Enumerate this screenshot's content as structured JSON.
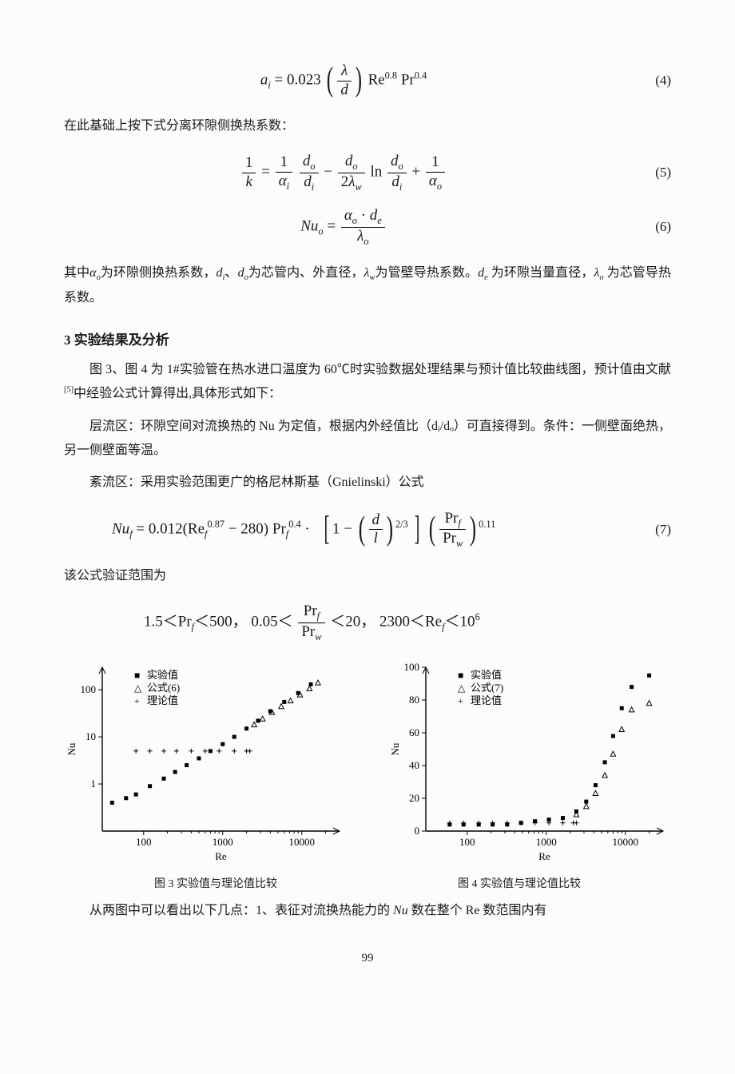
{
  "equations": {
    "eq4": {
      "num": "(4)"
    },
    "eq5": {
      "num": "(5)"
    },
    "eq6": {
      "num": "(6)"
    },
    "eq7": {
      "num": "(7)"
    }
  },
  "text": {
    "p_after_eq4": "在此基础上按下式分离环隙侧换热系数：",
    "p_after_eq6": "其中 αₒ 为环隙侧换热系数，dᵢ、dₒ 为芯管内、外直径，λ_w 为管壁导热系数。dₑ 为环隙当量直径，λₒ 为芯管导热系数。",
    "section3": "3  实验结果及分析",
    "p3_1": "图 3、图 4 为 1#实验管在热水进口温度为 60℃时实验数据处理结果与预计值比较曲线图，预计值由文献[5]中经验公式计算得出,具体形式如下：",
    "p3_2": "层流区：环隙空间对流换热的 Nu 为定值，根据内外经值比（dᵢ/dₒ）可直接得到。条件：一侧壁面绝热，另一侧壁面等温。",
    "p3_3": "紊流区：采用实验范围更广的格尼林斯基（Gnielinski）公式",
    "p_after_eq7": "该公式验证范围为",
    "range_line": "1.5＜Pr_f＜500，0.05＜ Pr_f / Pr_w ＜20，2300＜Re_f＜10⁶",
    "fig3_caption": "图 3  实验值与理论值比较",
    "fig4_caption": "图 4  实验值与理论值比较",
    "final_para": "从两图中可以看出以下几点：1、表征对流换热能力的 Nu 数在整个 Re 数范围内有",
    "page_number": "99"
  },
  "chart_common": {
    "xlabel": "Re",
    "ylabel": "Nu",
    "x_ticks": [
      100,
      1000,
      10000
    ],
    "legend_items": [
      "实验值",
      "公式(6)",
      "理论值"
    ],
    "legend_items_fig4": [
      "实验值",
      "公式(7)",
      "理论值"
    ],
    "colors": {
      "axis": "#000000",
      "bg": "#ffffff",
      "marker": "#000000"
    },
    "font_size_axis": 13,
    "font_size_legend": 13
  },
  "fig3": {
    "yscale": "log",
    "y_ticks": [
      1,
      10,
      100
    ],
    "ylim": [
      0.1,
      300
    ],
    "exp": [
      [
        40,
        0.4
      ],
      [
        60,
        0.5
      ],
      [
        80,
        0.6
      ],
      [
        120,
        0.9
      ],
      [
        180,
        1.3
      ],
      [
        250,
        1.8
      ],
      [
        350,
        2.5
      ],
      [
        500,
        3.5
      ],
      [
        700,
        5.0
      ],
      [
        1000,
        7.0
      ],
      [
        1400,
        10
      ],
      [
        2000,
        15
      ],
      [
        2800,
        22
      ],
      [
        4000,
        35
      ],
      [
        6000,
        55
      ],
      [
        9000,
        85
      ],
      [
        13000,
        130
      ]
    ],
    "formula": [
      [
        2500,
        18
      ],
      [
        3200,
        24
      ],
      [
        4200,
        33
      ],
      [
        5500,
        44
      ],
      [
        7200,
        58
      ],
      [
        9500,
        78
      ],
      [
        12500,
        105
      ],
      [
        16000,
        140
      ]
    ],
    "theory": [
      [
        80,
        5
      ],
      [
        120,
        5
      ],
      [
        180,
        5
      ],
      [
        260,
        5
      ],
      [
        400,
        5
      ],
      [
        600,
        5
      ],
      [
        900,
        5
      ],
      [
        1400,
        5
      ],
      [
        2000,
        5
      ],
      [
        2200,
        5
      ]
    ]
  },
  "fig4": {
    "yscale": "linear",
    "y_ticks": [
      0,
      20,
      40,
      60,
      80,
      100
    ],
    "ylim": [
      0,
      100
    ],
    "exp": [
      [
        60,
        4
      ],
      [
        90,
        4
      ],
      [
        140,
        4
      ],
      [
        210,
        4
      ],
      [
        320,
        4
      ],
      [
        480,
        5
      ],
      [
        720,
        6
      ],
      [
        1080,
        7
      ],
      [
        1620,
        8
      ],
      [
        2400,
        12
      ],
      [
        3200,
        18
      ],
      [
        4200,
        28
      ],
      [
        5500,
        42
      ],
      [
        7000,
        58
      ],
      [
        9000,
        75
      ],
      [
        12000,
        88
      ],
      [
        20000,
        95
      ]
    ],
    "formula": [
      [
        2400,
        10
      ],
      [
        3200,
        15
      ],
      [
        4200,
        23
      ],
      [
        5500,
        34
      ],
      [
        7000,
        47
      ],
      [
        9000,
        62
      ],
      [
        12000,
        74
      ],
      [
        20000,
        78
      ]
    ],
    "theory": [
      [
        60,
        5
      ],
      [
        90,
        5
      ],
      [
        140,
        5
      ],
      [
        210,
        5
      ],
      [
        320,
        5
      ],
      [
        480,
        5
      ],
      [
        720,
        5
      ],
      [
        1080,
        5
      ],
      [
        1620,
        5
      ],
      [
        2200,
        5
      ],
      [
        2400,
        5
      ]
    ]
  }
}
